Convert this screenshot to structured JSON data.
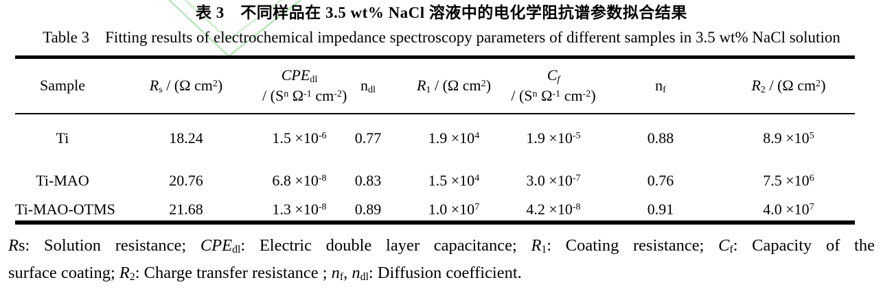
{
  "titles": {
    "chinese": "表 3　不同样品在 3.5 wt% NaCl 溶液中的电化学阻抗谱参数拟合结果",
    "english": "Table 3 Fitting results of electrochemical impedance spectroscopy parameters of different samples in 3.5 wt% NaCl solution"
  },
  "watermark": {
    "color_outer": "#aee6ae",
    "color_inner": "#c3eec3",
    "shape": "hollow-v-check"
  },
  "table": {
    "columns": [
      {
        "runs": [
          {
            "t": "Sample"
          }
        ]
      },
      {
        "runs": [
          {
            "t": "R",
            "s": "i"
          },
          {
            "t": "s",
            "s": "b"
          },
          {
            "t": " / (Ω cm"
          },
          {
            "t": "2",
            "s": "p"
          },
          {
            "t": ")"
          }
        ]
      },
      {
        "lines": [
          [
            {
              "t": "CPE",
              "s": "i"
            },
            {
              "t": "dl",
              "s": "b"
            }
          ],
          [
            {
              "t": "/ (S"
            },
            {
              "t": "n",
              "s": "p"
            },
            {
              "t": " Ω"
            },
            {
              "t": "-1",
              "s": "p"
            },
            {
              "t": " cm"
            },
            {
              "t": "-2",
              "s": "p"
            },
            {
              "t": ")"
            }
          ]
        ]
      },
      {
        "runs": [
          {
            "t": "n"
          },
          {
            "t": "dl",
            "s": "b"
          }
        ]
      },
      {
        "runs": [
          {
            "t": "R",
            "s": "i"
          },
          {
            "t": "1",
            "s": "b"
          },
          {
            "t": " / (Ω cm"
          },
          {
            "t": "2",
            "s": "p"
          },
          {
            "t": ")"
          }
        ]
      },
      {
        "lines": [
          [
            {
              "t": "C",
              "s": "i"
            },
            {
              "t": "f",
              "s": "bi"
            }
          ],
          [
            {
              "t": "/ (S"
            },
            {
              "t": "n",
              "s": "p"
            },
            {
              "t": " Ω"
            },
            {
              "t": "-1",
              "s": "p"
            },
            {
              "t": " cm"
            },
            {
              "t": "-2",
              "s": "p"
            },
            {
              "t": ")"
            }
          ]
        ]
      },
      {
        "runs": [
          {
            "t": "n"
          },
          {
            "t": "f",
            "s": "b"
          }
        ]
      },
      {
        "runs": [
          {
            "t": "R",
            "s": "i"
          },
          {
            "t": "2",
            "s": "b"
          },
          {
            "t": " / (Ω cm"
          },
          {
            "t": "2",
            "s": "p"
          },
          {
            "t": ")"
          }
        ]
      }
    ],
    "rows": [
      [
        [
          {
            "t": "Ti"
          }
        ],
        [
          {
            "t": "18.24"
          }
        ],
        [
          {
            "t": "1.5 ×10"
          },
          {
            "t": "-6",
            "s": "p"
          }
        ],
        [
          {
            "t": "0.77"
          }
        ],
        [
          {
            "t": "1.9 ×10"
          },
          {
            "t": "4",
            "s": "p"
          }
        ],
        [
          {
            "t": "1.9 ×10"
          },
          {
            "t": "-5",
            "s": "p"
          }
        ],
        [
          {
            "t": "0.88"
          }
        ],
        [
          {
            "t": "8.9 ×10"
          },
          {
            "t": "5",
            "s": "p"
          }
        ]
      ],
      [
        [
          {
            "t": "Ti-MAO"
          }
        ],
        [
          {
            "t": "20.76"
          }
        ],
        [
          {
            "t": "6.8 ×10"
          },
          {
            "t": "-8",
            "s": "p"
          }
        ],
        [
          {
            "t": "0.83"
          }
        ],
        [
          {
            "t": "1.5 ×10"
          },
          {
            "t": "4",
            "s": "p"
          }
        ],
        [
          {
            "t": "3.0 ×10"
          },
          {
            "t": "-7",
            "s": "p"
          }
        ],
        [
          {
            "t": "0.76"
          }
        ],
        [
          {
            "t": "7.5 ×10"
          },
          {
            "t": "6",
            "s": "p"
          }
        ]
      ],
      [
        [
          {
            "t": "Ti-MAO-OTMS"
          }
        ],
        [
          {
            "t": "21.68"
          }
        ],
        [
          {
            "t": "1.3 ×10"
          },
          {
            "t": "-8",
            "s": "p"
          }
        ],
        [
          {
            "t": "0.89"
          }
        ],
        [
          {
            "t": "1.0 ×10"
          },
          {
            "t": "7",
            "s": "p"
          }
        ],
        [
          {
            "t": "4.2 ×10"
          },
          {
            "t": "-8",
            "s": "p"
          }
        ],
        [
          {
            "t": "0.91"
          }
        ],
        [
          {
            "t": "4.0 ×10"
          },
          {
            "t": "7",
            "s": "p"
          }
        ]
      ]
    ]
  },
  "footnote": {
    "line1": [
      {
        "t": "R",
        "s": "i"
      },
      {
        "t": "s"
      },
      {
        "t": ": Solution resistance; "
      },
      {
        "t": "CPE",
        "s": "i"
      },
      {
        "t": "dl",
        "s": "b"
      },
      {
        "t": ": Electric double layer capacitance; "
      },
      {
        "t": "R",
        "s": "i"
      },
      {
        "t": "1",
        "s": "b"
      },
      {
        "t": ": Coating resistance; "
      },
      {
        "t": "C",
        "s": "i"
      },
      {
        "t": "f",
        "s": "b"
      },
      {
        "t": ": Capacity of the"
      }
    ],
    "line2": [
      {
        "t": "surface coating; "
      },
      {
        "t": "R",
        "s": "i"
      },
      {
        "t": "2",
        "s": "b"
      },
      {
        "t": ": Charge transfer resistance ; "
      },
      {
        "t": "n",
        "s": "i"
      },
      {
        "t": "f",
        "s": "b"
      },
      {
        "t": ", "
      },
      {
        "t": "n",
        "s": "i"
      },
      {
        "t": "dl",
        "s": "b"
      },
      {
        "t": ": Diffusion coefficient."
      }
    ]
  }
}
